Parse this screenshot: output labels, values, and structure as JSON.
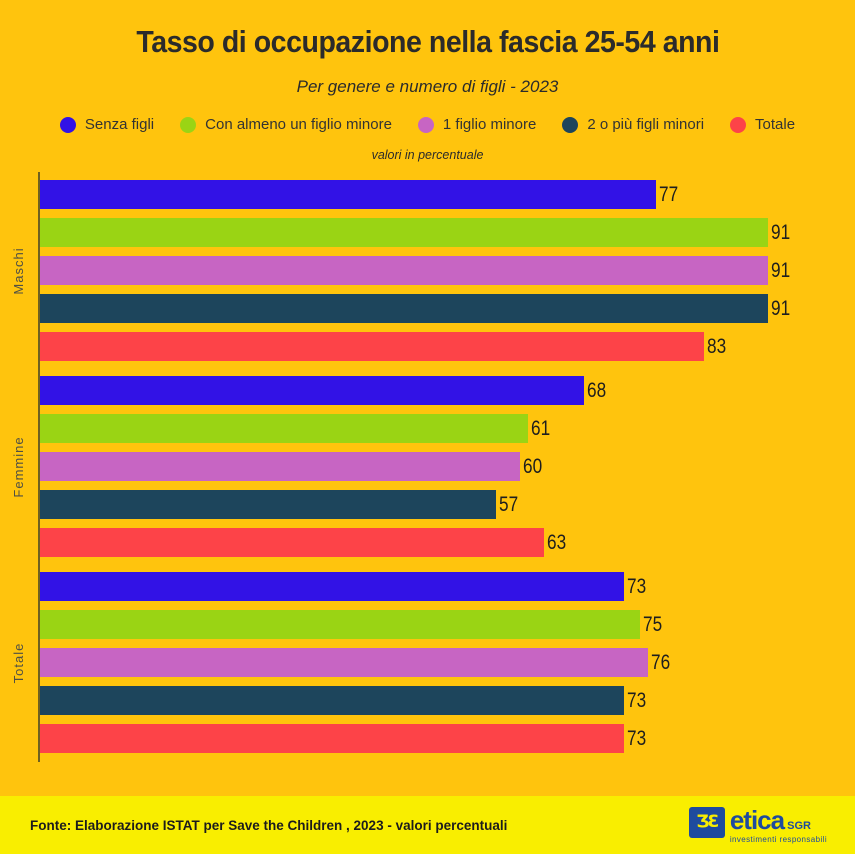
{
  "header": {
    "title": "Tasso di occupazione nella fascia 25-54 anni",
    "subtitle": "Per genere e numero di figli - 2023",
    "axis_note": "valori in percentuale"
  },
  "legend": [
    {
      "label": "Senza figli",
      "color": "#3212E6"
    },
    {
      "label": "Con almeno un figlio minore",
      "color": "#9AD414"
    },
    {
      "label": "1 figlio minore",
      "color": "#C765C3"
    },
    {
      "label": "2 o più figli minori",
      "color": "#1D455C"
    },
    {
      "label": "Totale",
      "color": "#FD4348"
    }
  ],
  "chart_data": {
    "type": "bar",
    "orientation": "horizontal",
    "title": "Tasso di occupazione nella fascia 25-54 anni",
    "subtitle": "Per genere e numero di figli - 2023",
    "units_note": "valori in percentuale",
    "categories": [
      "Maschi",
      "Femmine",
      "Totale"
    ],
    "series": [
      {
        "name": "Senza figli",
        "color": "#3212E6",
        "values": [
          77,
          68,
          73
        ]
      },
      {
        "name": "Con almeno un figlio minore",
        "color": "#9AD414",
        "values": [
          91,
          61,
          75
        ]
      },
      {
        "name": "1 figlio minore",
        "color": "#C765C3",
        "values": [
          91,
          60,
          76
        ]
      },
      {
        "name": "2 o più figli minori",
        "color": "#1D455C",
        "values": [
          91,
          57,
          73
        ]
      },
      {
        "name": "Totale",
        "color": "#FD4348",
        "values": [
          83,
          63,
          73
        ]
      }
    ],
    "xlim": [
      0,
      100
    ],
    "grid": false,
    "legend_position": "top",
    "value_labels": true
  },
  "footer": {
    "source": "Fonte: Elaborazione ISTAT per Save the Children , 2023 - valori percentuali",
    "logo": {
      "brand": "etica",
      "suffix": "SGR",
      "tagline": "investimenti responsabili",
      "icon_glyph": "ƷƐ"
    }
  },
  "colors": {
    "background": "#FFC40D",
    "footer_background": "#F9EE00",
    "text": "#2B2B2B",
    "axis": "#6F6120",
    "logo_blue": "#1E4B9E"
  }
}
